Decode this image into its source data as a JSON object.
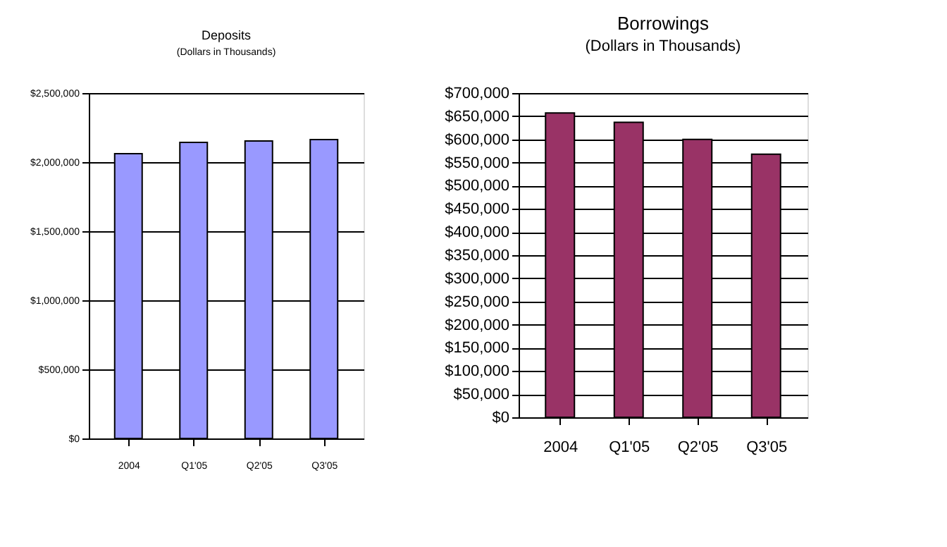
{
  "chart_data": [
    {
      "type": "bar",
      "title": "Deposits",
      "subtitle": "(Dollars in Thousands)",
      "categories": [
        "2004",
        "Q1'05",
        "Q2'05",
        "Q3'05"
      ],
      "values": [
        2061000,
        2143000,
        2153000,
        2163000
      ],
      "color": "#9999ff",
      "ylim": [
        0,
        2500000
      ],
      "yticks": [
        {
          "value": 0,
          "label": "$0"
        },
        {
          "value": 500000,
          "label": "$500,000"
        },
        {
          "value": 1000000,
          "label": "$1,000,000"
        },
        {
          "value": 1500000,
          "label": "$1,500,000"
        },
        {
          "value": 2000000,
          "label": "$2,000,000"
        },
        {
          "value": 2500000,
          "label": "$2,500,000"
        }
      ],
      "grid": "y"
    },
    {
      "type": "bar",
      "title": "Borrowings",
      "subtitle": "(Dollars in Thousands)",
      "categories": [
        "2004",
        "Q1'05",
        "Q2'05",
        "Q3'05"
      ],
      "values": [
        657000,
        637000,
        600000,
        568000
      ],
      "color": "#993366",
      "ylim": [
        0,
        700000
      ],
      "yticks": [
        {
          "value": 0,
          "label": "$0"
        },
        {
          "value": 50000,
          "label": "$50,000"
        },
        {
          "value": 100000,
          "label": "$100,000"
        },
        {
          "value": 150000,
          "label": "$150,000"
        },
        {
          "value": 200000,
          "label": "$200,000"
        },
        {
          "value": 250000,
          "label": "$250,000"
        },
        {
          "value": 300000,
          "label": "$300,000"
        },
        {
          "value": 350000,
          "label": "$350,000"
        },
        {
          "value": 400000,
          "label": "$400,000"
        },
        {
          "value": 450000,
          "label": "$450,000"
        },
        {
          "value": 500000,
          "label": "$500,000"
        },
        {
          "value": 550000,
          "label": "$550,000"
        },
        {
          "value": 600000,
          "label": "$600,000"
        },
        {
          "value": 650000,
          "label": "$650,000"
        },
        {
          "value": 700000,
          "label": "$700,000"
        }
      ],
      "grid": "y"
    }
  ]
}
